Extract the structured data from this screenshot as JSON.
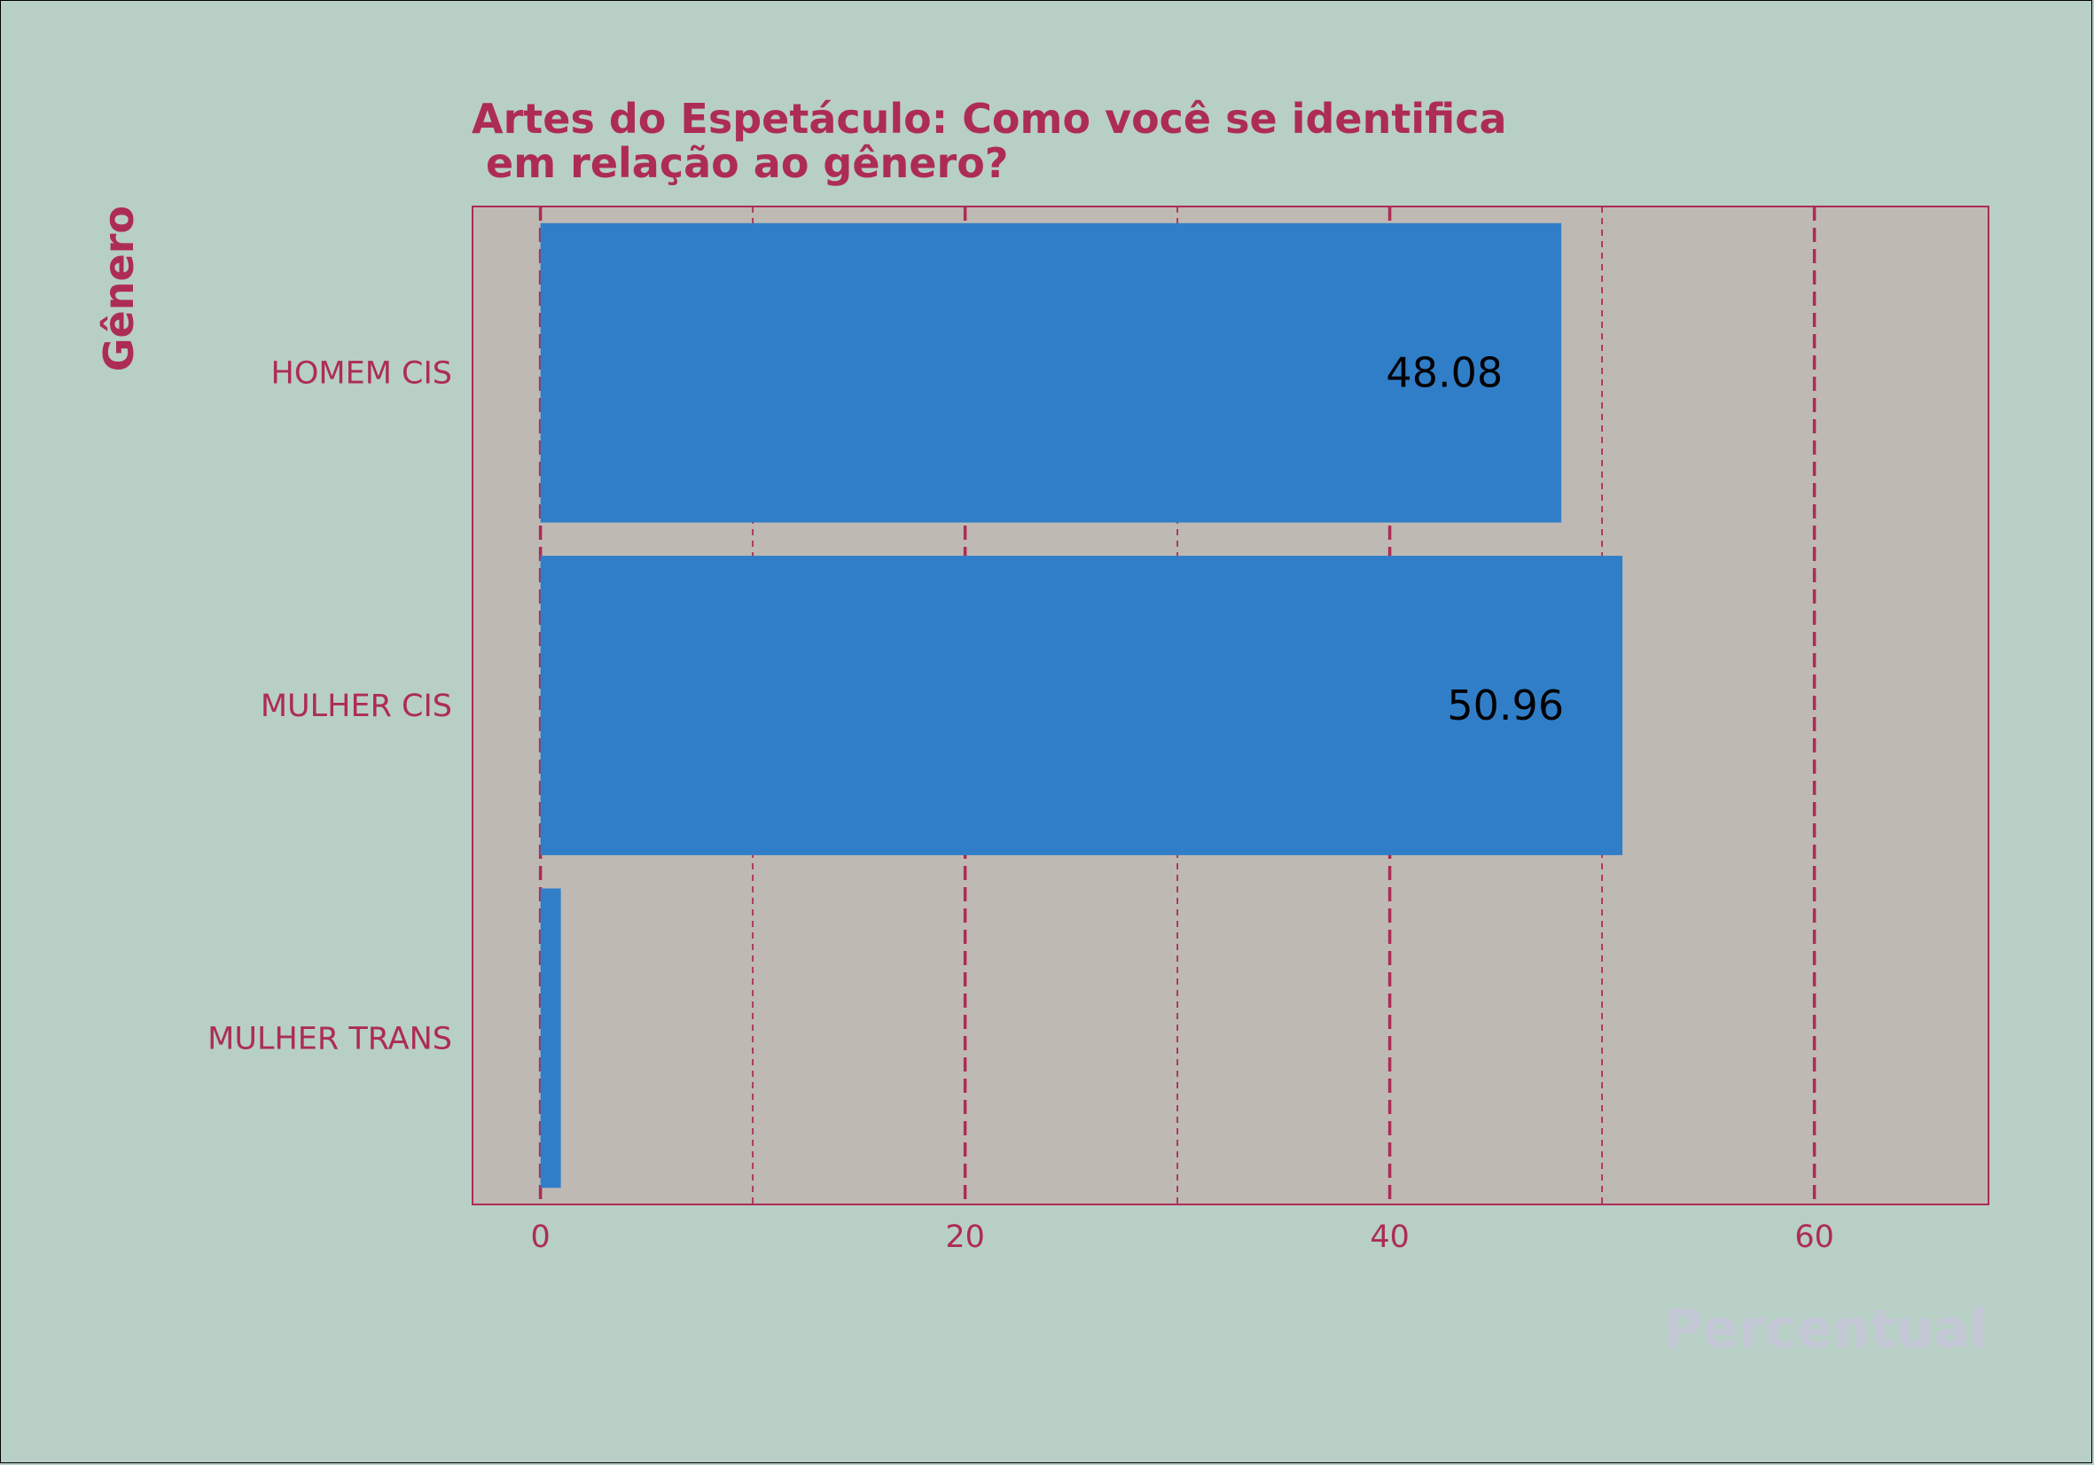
{
  "chart_data": {
    "type": "bar",
    "orientation": "horizontal",
    "title": "Artes do Espetáculo: Como você se identifica\n em relação ao gênero?",
    "xlabel": "Percentual",
    "ylabel": "Gênero",
    "categories": [
      "HOMEM CIS",
      "MULHER CIS",
      "MULHER TRANS"
    ],
    "values": [
      48.08,
      50.96,
      0.96
    ],
    "data_labels": [
      "48.08",
      "50.96",
      ""
    ],
    "x_ticks": [
      0,
      20,
      40,
      60
    ],
    "xlim": [
      -3.2,
      68.2
    ],
    "grid": true,
    "colors": {
      "bar": "#317ec8",
      "plot_bg": "#bfb9b4",
      "figure_bg": "#b8cfc6",
      "accent": "#ad2c55",
      "xlabel": "#c4c7d6"
    }
  }
}
